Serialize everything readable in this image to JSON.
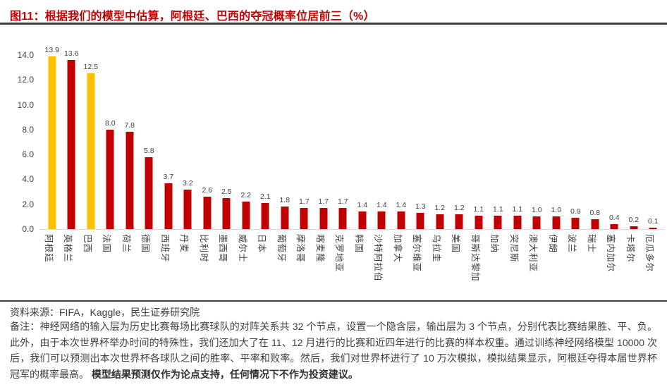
{
  "figure": {
    "title": "图11：根据我们的模型中估算，阿根廷、巴西的夺冠概率位居前三（%）",
    "source": "资料来源：FIFA，Kaggle，民生证券研究院",
    "note_regular": "备注：神经网络的输入层为历史比赛每场比赛球队的对阵关系共 32 个节点，设置一个隐含层，输出层为 3 个节点，分别代表比赛结果胜、平、负。此外，由于本次世界杯举办时间的特殊性，我们还加大了在 11、12 月进行的比赛和近四年进行的比赛的样本权重。通过训练神经网络模型 10000 次后，我们可以预测出本次世界杯各球队之间的胜率、平率和败率。然后，我们对世界杯进行了 10 万次模拟，模拟结果显示，阿根廷夺得本届世界杯冠军的概率最高。",
    "note_bold": "模型结果预测仅作为论点支持，任何情况下不作为投资建议。"
  },
  "chart_data": {
    "type": "bar",
    "title": "根据我们的模型中估算，阿根廷、巴西的夺冠概率位居前三（%）",
    "categories": [
      "阿根廷",
      "英格兰",
      "巴西",
      "法国",
      "荷兰",
      "德国",
      "西班牙",
      "丹麦",
      "比利时",
      "墨西哥",
      "威尔士",
      "日本",
      "葡萄牙",
      "摩洛哥",
      "喀麦隆",
      "克罗地亚",
      "韩国",
      "沙特阿拉伯",
      "加拿大",
      "塞尔维亚",
      "乌拉圭",
      "美国",
      "哥斯达黎加",
      "加纳",
      "突尼斯",
      "澳大利亚",
      "伊朗",
      "波兰",
      "瑞士",
      "塞内加尔",
      "卡塔尔",
      "厄瓜多尔"
    ],
    "values": [
      13.9,
      13.6,
      12.5,
      8.0,
      7.8,
      5.8,
      3.7,
      3.2,
      2.6,
      2.5,
      2.2,
      2.1,
      1.8,
      1.7,
      1.7,
      1.7,
      1.4,
      1.4,
      1.4,
      1.3,
      1.2,
      1.2,
      1.1,
      1.1,
      1.1,
      1.0,
      1.0,
      0.9,
      0.8,
      0.4,
      0.2,
      0.1
    ],
    "highlight_indices": [
      0,
      2
    ],
    "colors": {
      "bar_default": "#c00000",
      "bar_highlight": "#ffc000",
      "title_accent": "#c00000",
      "axis_text": "#404040",
      "axis_line": "#d9d9d9"
    },
    "xlabel": "",
    "ylabel": "",
    "ylim": [
      0,
      14
    ],
    "yticks": [
      "0.0",
      "2.0",
      "4.0",
      "6.0",
      "8.0",
      "10.0",
      "12.0",
      "14.0"
    ],
    "grid": false,
    "legend": "none",
    "value_labels": true
  }
}
